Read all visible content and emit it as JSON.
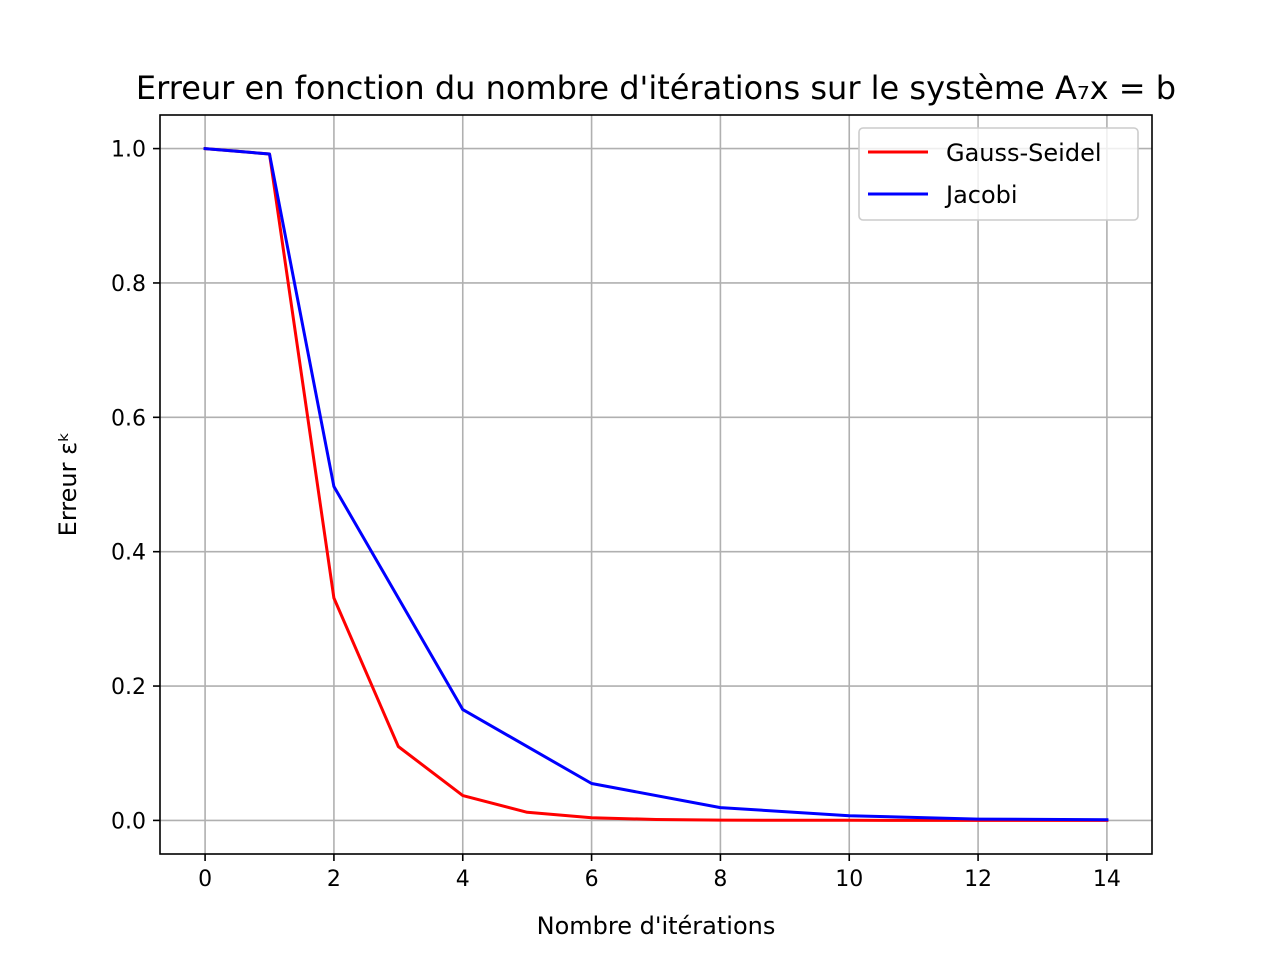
{
  "chart_data": {
    "type": "line",
    "title": "Erreur en fonction du nombre d'itérations sur le système A₇x = b",
    "xlabel": "Nombre d'itérations",
    "ylabel": "Erreur εᵏ",
    "xlim": [
      -0.7,
      14.7
    ],
    "ylim": [
      -0.05,
      1.05
    ],
    "xticks": [
      0,
      2,
      4,
      6,
      8,
      10,
      12,
      14
    ],
    "yticks": [
      0.0,
      0.2,
      0.4,
      0.6,
      0.8,
      1.0
    ],
    "xtick_labels": [
      "0",
      "2",
      "4",
      "6",
      "8",
      "10",
      "12",
      "14"
    ],
    "ytick_labels": [
      "0.0",
      "0.2",
      "0.4",
      "0.6",
      "0.8",
      "1.0"
    ],
    "grid": true,
    "legend_position": "top-right",
    "series": [
      {
        "name": "Gauss-Seidel",
        "color": "#ff0000",
        "x": [
          0,
          1,
          2,
          3,
          4,
          5,
          6,
          7,
          8,
          9,
          10,
          11,
          12,
          13,
          14
        ],
        "y": [
          1.0,
          0.992,
          0.331,
          0.11,
          0.037,
          0.012,
          0.004,
          0.0014,
          0.0005,
          0.0002,
          0.0001,
          0.0,
          0.0,
          0.0,
          0.0
        ]
      },
      {
        "name": "Jacobi",
        "color": "#0000ff",
        "x": [
          0,
          1,
          2,
          4,
          6,
          8,
          10,
          12,
          14
        ],
        "y": [
          1.0,
          0.992,
          0.497,
          0.165,
          0.055,
          0.019,
          0.007,
          0.002,
          0.001
        ]
      }
    ]
  }
}
